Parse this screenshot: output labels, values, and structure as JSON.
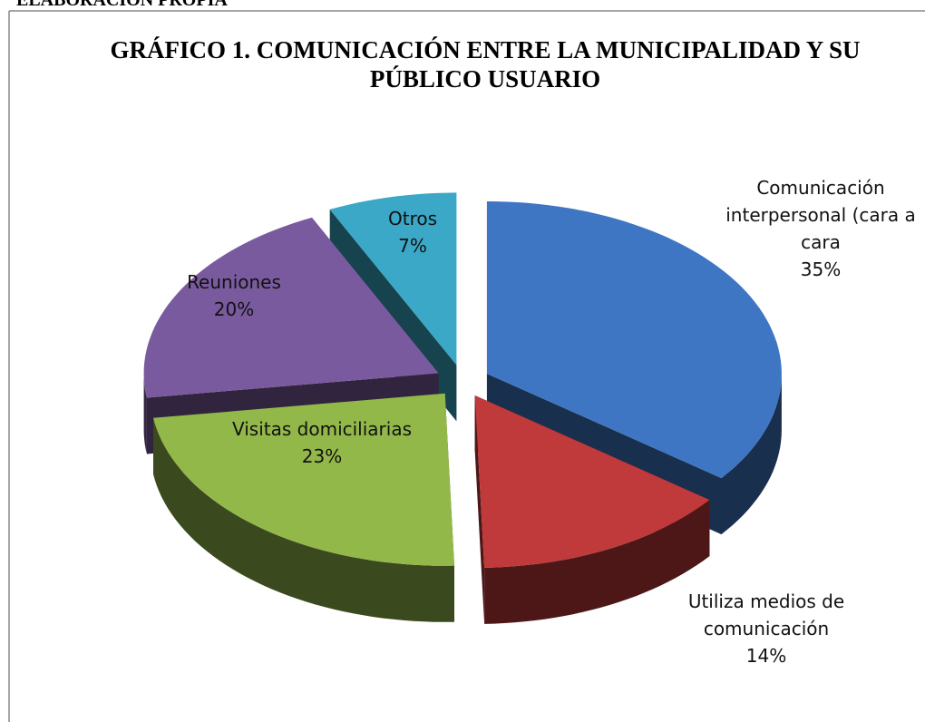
{
  "chart_data": {
    "type": "pie",
    "source": "ELABORACIÓN PROPIA",
    "title": "GRÁFICO 1. COMUNICACIÓN ENTRE LA MUNICIPALIDAD Y SU PÚBLICO USUARIO",
    "categories": [
      "Comunicación interpersonal (cara a cara",
      "Utiliza medios de comunicación",
      "Visitas domiciliarias",
      "Reuniones",
      "Otros"
    ],
    "values": [
      35,
      14,
      23,
      20,
      7
    ],
    "value_labels": [
      "35%",
      "14%",
      "23%",
      "20%",
      "7%"
    ],
    "colors": [
      "#3e76c4",
      "#c0393b",
      "#93b84a",
      "#7a5a9e",
      "#3aa8c6"
    ]
  }
}
